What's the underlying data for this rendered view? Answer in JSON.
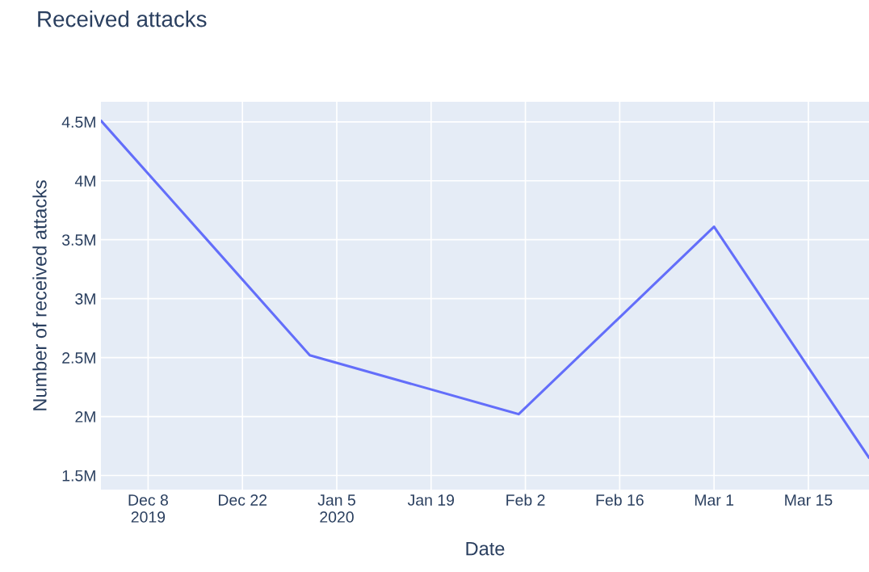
{
  "chart_data": {
    "type": "line",
    "title": "Received attacks",
    "xlabel": "Date",
    "ylabel": "Number of received attacks",
    "x": [
      "2019-12-01",
      "2020-01-01",
      "2020-02-01",
      "2020-03-01",
      "2020-03-24"
    ],
    "series": [
      {
        "color": "#636efa",
        "values": [
          4510000,
          2520000,
          2020000,
          3610000,
          1650000
        ]
      }
    ],
    "xlim": [
      "2019-12-01",
      "2020-03-24"
    ],
    "xticks": [
      {
        "value": "2019-12-08",
        "label": "Dec 8\n2019"
      },
      {
        "value": "2019-12-22",
        "label": "Dec 22"
      },
      {
        "value": "2020-01-05",
        "label": "Jan 5\n2020"
      },
      {
        "value": "2020-01-19",
        "label": "Jan 19"
      },
      {
        "value": "2020-02-02",
        "label": "Feb 2"
      },
      {
        "value": "2020-02-16",
        "label": "Feb 16"
      },
      {
        "value": "2020-03-01",
        "label": "Mar 1"
      },
      {
        "value": "2020-03-15",
        "label": "Mar 15"
      }
    ],
    "ylim": [
      1380000,
      4670000
    ],
    "yticks": [
      {
        "value": 1500000,
        "label": "1.5M"
      },
      {
        "value": 2000000,
        "label": "2M"
      },
      {
        "value": 2500000,
        "label": "2.5M"
      },
      {
        "value": 3000000,
        "label": "3M"
      },
      {
        "value": 3500000,
        "label": "3.5M"
      },
      {
        "value": 4000000,
        "label": "4M"
      },
      {
        "value": 4500000,
        "label": "4.5M"
      }
    ],
    "grid": true,
    "marker": "none",
    "line_style": "solid"
  }
}
